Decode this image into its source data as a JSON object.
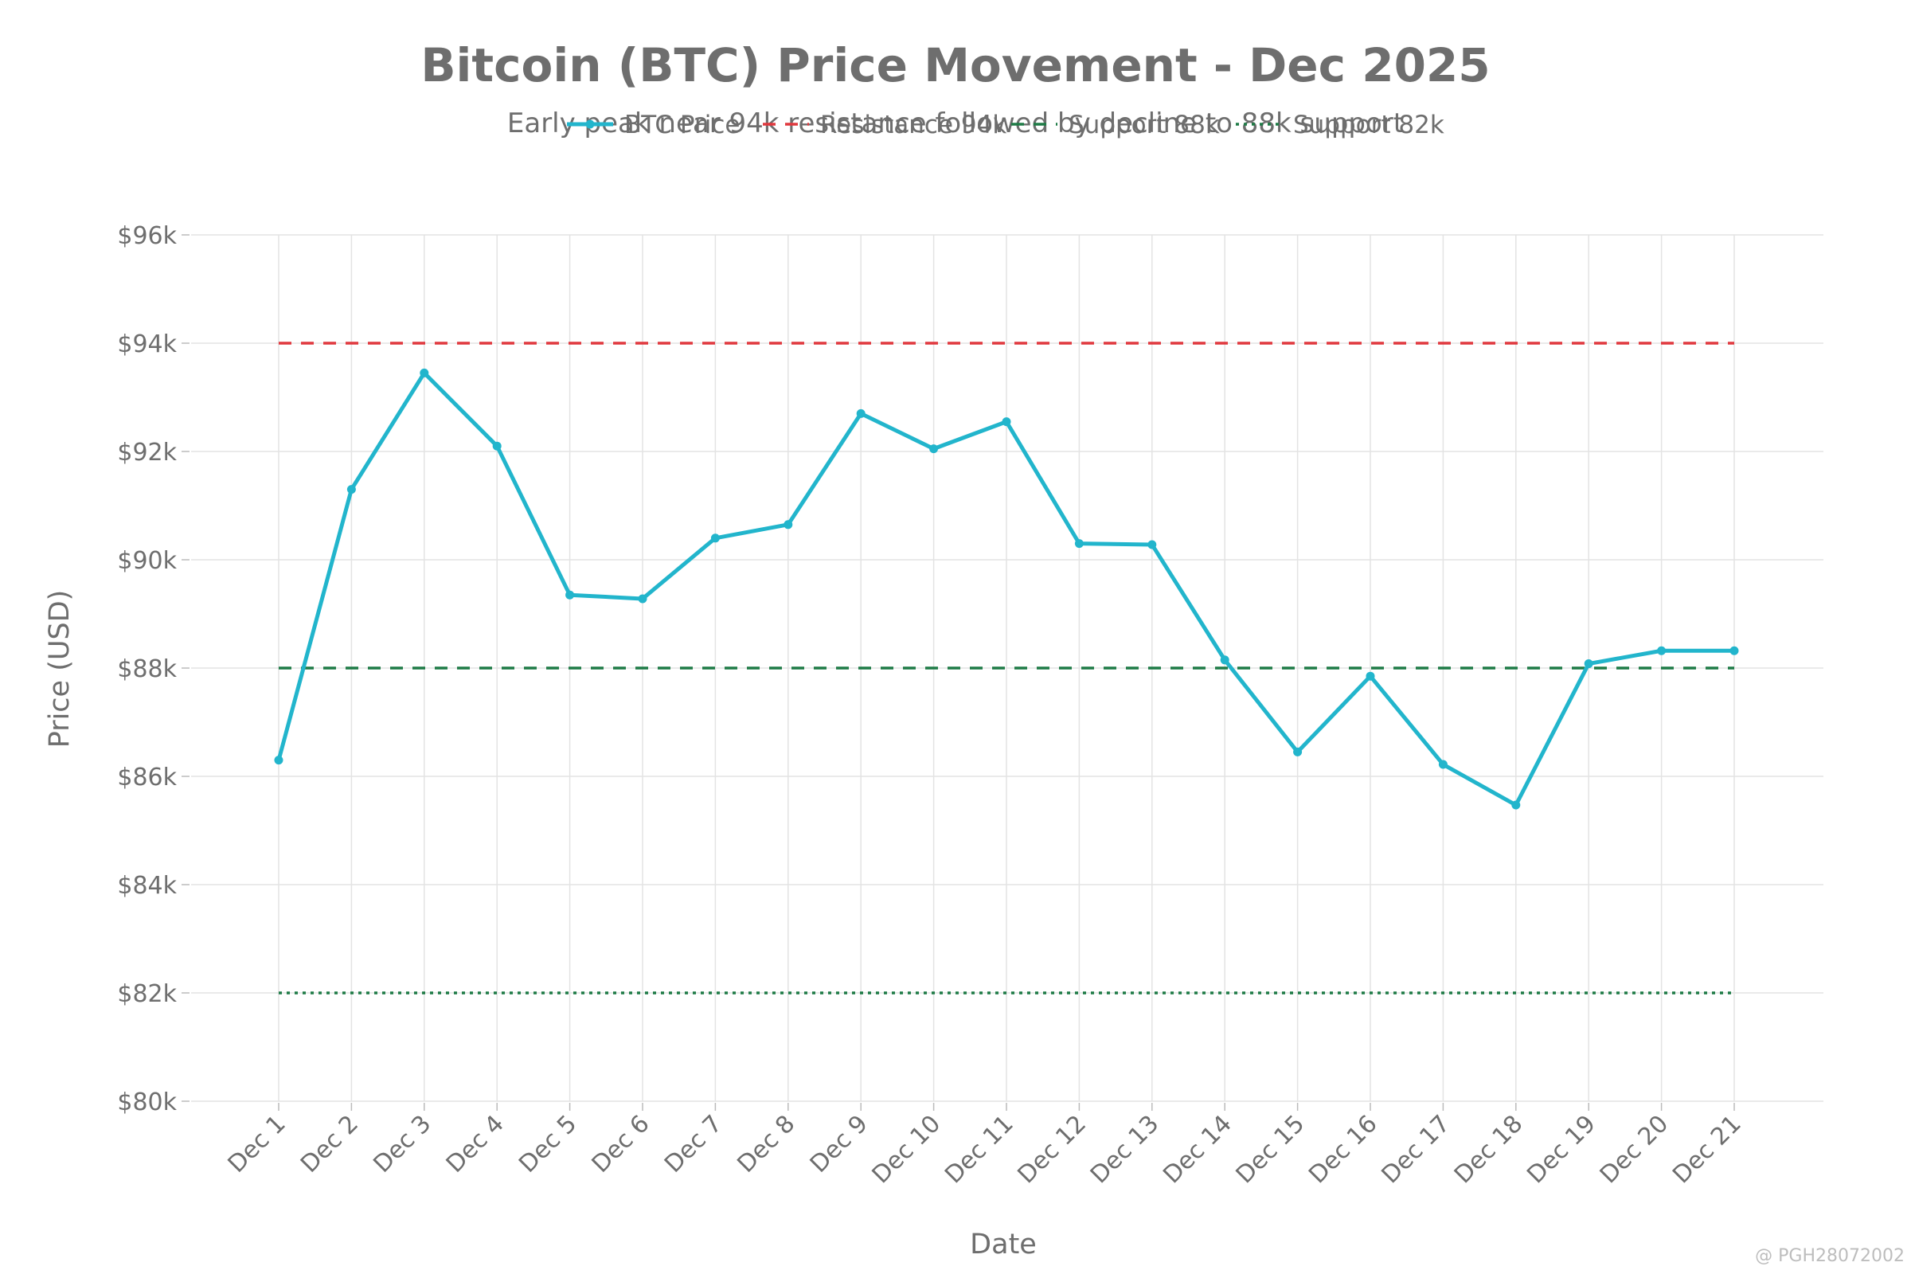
{
  "chart_data": {
    "type": "line",
    "title": "Bitcoin (BTC) Price Movement - Dec 2025",
    "subtitle": "Early peak near 94k resistance followed by decline to 88k support",
    "xlabel": "Date",
    "ylabel": "Price (USD)",
    "categories": [
      "Dec 1",
      "Dec 2",
      "Dec 3",
      "Dec 4",
      "Dec 5",
      "Dec 6",
      "Dec 7",
      "Dec 8",
      "Dec 9",
      "Dec 10",
      "Dec 11",
      "Dec 12",
      "Dec 13",
      "Dec 14",
      "Dec 15",
      "Dec 16",
      "Dec 17",
      "Dec 18",
      "Dec 19",
      "Dec 20",
      "Dec 21"
    ],
    "ylim": [
      80000,
      96000
    ],
    "yticks": [
      80000,
      82000,
      84000,
      86000,
      88000,
      90000,
      92000,
      94000,
      96000
    ],
    "ytick_labels": [
      "$80k",
      "$82k",
      "$84k",
      "$86k",
      "$88k",
      "$90k",
      "$92k",
      "$94k",
      "$96k"
    ],
    "grid": true,
    "legend_position": "top-center",
    "series": [
      {
        "name": "BTC Price",
        "color": "#22b5cc",
        "style": "solid-markers",
        "values": [
          86300,
          91300,
          93450,
          92100,
          89350,
          89280,
          90400,
          90650,
          92700,
          92050,
          92550,
          90300,
          90280,
          88150,
          86450,
          87850,
          86220,
          85470,
          88080,
          88320,
          88320
        ]
      }
    ],
    "reference_lines": [
      {
        "name": "Resistance 94k",
        "value": 94000,
        "color": "#e0383e",
        "style": "dashed"
      },
      {
        "name": "Support 88k",
        "value": 88000,
        "color": "#1e7b46",
        "style": "dashed"
      },
      {
        "name": "Support 82k",
        "value": 82000,
        "color": "#1e7b46",
        "style": "dotted"
      }
    ]
  },
  "watermark": "@ PGH28072002"
}
